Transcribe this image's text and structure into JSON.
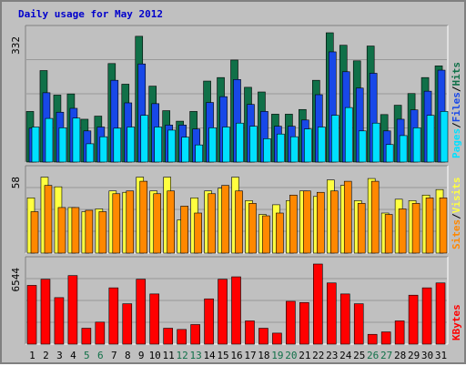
{
  "title": "Daily usage for May 2012",
  "colors": {
    "background": "#c0c0c0",
    "plot": "#c0c0c0",
    "grid": "#999999",
    "pages": "#00e0ff",
    "files": "#1848e8",
    "hits": "#107048",
    "visits": "#ffff40",
    "sites": "#ff8800",
    "kbytes": "#ff0000",
    "weekday_label": "#000000",
    "weekend_label": "#107048"
  },
  "chart_data": [
    {
      "type": "bar",
      "panel": "hits-files-pages",
      "max_label": "332",
      "ylim": [
        0,
        332
      ],
      "grid": true,
      "categories": [
        "1",
        "2",
        "3",
        "4",
        "5",
        "6",
        "7",
        "8",
        "9",
        "10",
        "11",
        "12",
        "13",
        "14",
        "15",
        "16",
        "17",
        "18",
        "19",
        "20",
        "21",
        "22",
        "23",
        "24",
        "25",
        "26",
        "27",
        "28",
        "29",
        "30",
        "31"
      ],
      "weekend_days": [
        "5",
        "6",
        "12",
        "13",
        "19",
        "20",
        "26",
        "27"
      ],
      "legend": [
        "Pages",
        "Files",
        "Hits"
      ],
      "legend_separator": "/",
      "series": [
        {
          "name": "Hits",
          "color_key": "hits",
          "values": [
            130,
            235,
            172,
            175,
            110,
            118,
            253,
            200,
            323,
            195,
            132,
            105,
            130,
            208,
            217,
            262,
            192,
            180,
            123,
            123,
            135,
            210,
            332,
            300,
            260,
            298,
            122,
            146,
            176,
            217,
            247
          ]
        },
        {
          "name": "Files",
          "color_key": "files",
          "values": [
            87,
            178,
            128,
            138,
            80,
            90,
            210,
            152,
            252,
            150,
            95,
            95,
            85,
            153,
            168,
            212,
            148,
            130,
            92,
            92,
            108,
            173,
            283,
            232,
            190,
            228,
            80,
            110,
            134,
            182,
            236
          ]
        },
        {
          "name": "Pages",
          "color_key": "pages",
          "values": [
            90,
            112,
            88,
            113,
            47,
            65,
            87,
            90,
            120,
            90,
            82,
            64,
            44,
            88,
            90,
            100,
            92,
            60,
            72,
            65,
            85,
            90,
            120,
            140,
            80,
            100,
            45,
            68,
            88,
            120,
            130
          ]
        }
      ]
    },
    {
      "type": "bar",
      "panel": "visits-sites",
      "max_label": "58",
      "ylim": [
        0,
        58
      ],
      "grid": true,
      "categories": [
        "1",
        "2",
        "3",
        "4",
        "5",
        "6",
        "7",
        "8",
        "9",
        "10",
        "11",
        "12",
        "13",
        "14",
        "15",
        "16",
        "17",
        "18",
        "19",
        "20",
        "21",
        "22",
        "23",
        "24",
        "25",
        "26",
        "27",
        "28",
        "29",
        "30",
        "31"
      ],
      "legend": [
        "Sites",
        "Visits"
      ],
      "legend_separator": "/",
      "series": [
        {
          "name": "Visits",
          "color_key": "visits",
          "values": [
            40,
            55,
            48,
            33,
            30,
            32,
            45,
            44,
            55,
            45,
            55,
            24,
            40,
            45,
            47,
            55,
            38,
            28,
            35,
            38,
            45,
            41,
            53,
            49,
            38,
            54,
            29,
            39,
            38,
            42,
            46
          ]
        },
        {
          "name": "Sites",
          "color_key": "sites",
          "values": [
            30,
            49,
            33,
            33,
            31,
            30,
            43,
            45,
            52,
            43,
            45,
            34,
            29,
            43,
            49,
            45,
            36,
            27,
            29,
            42,
            45,
            44,
            45,
            52,
            36,
            52,
            28,
            32,
            36,
            40,
            40
          ]
        }
      ]
    },
    {
      "type": "bar",
      "panel": "kbytes",
      "max_label": "6544",
      "ylim": [
        0,
        6544
      ],
      "grid": true,
      "categories": [
        "1",
        "2",
        "3",
        "4",
        "5",
        "6",
        "7",
        "8",
        "9",
        "10",
        "11",
        "12",
        "13",
        "14",
        "15",
        "16",
        "17",
        "18",
        "19",
        "20",
        "21",
        "22",
        "23",
        "24",
        "25",
        "26",
        "27",
        "28",
        "29",
        "30",
        "31"
      ],
      "legend": [
        "KBytes"
      ],
      "series": [
        {
          "name": "KBytes",
          "color_key": "kbytes",
          "values": [
            4800,
            5300,
            3800,
            5600,
            1300,
            1800,
            4600,
            3300,
            5300,
            4100,
            1300,
            1200,
            1600,
            3700,
            5300,
            5500,
            1900,
            1300,
            900,
            3500,
            3400,
            6544,
            5000,
            4100,
            3300,
            800,
            1000,
            1900,
            4000,
            4600,
            5000
          ]
        }
      ]
    }
  ]
}
